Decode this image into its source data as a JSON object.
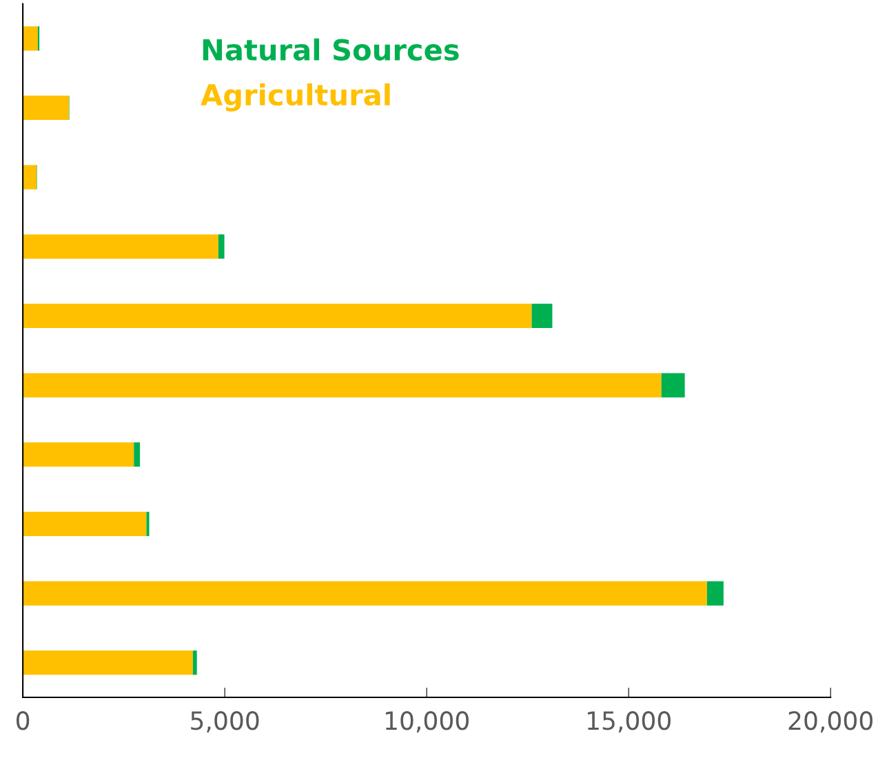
{
  "chart_data": {
    "type": "bar",
    "orientation": "horizontal",
    "stacked": true,
    "categories": [
      null,
      null,
      null,
      null,
      null,
      null,
      null,
      null,
      null,
      null
    ],
    "series": [
      {
        "name": "Agricultural",
        "color": "#ffc000",
        "values": [
          370,
          1140,
          340,
          4840,
          12600,
          15810,
          2750,
          3060,
          16940,
          4210
        ]
      },
      {
        "name": "Natural Sources",
        "color": "#00b050",
        "values": [
          40,
          10,
          10,
          150,
          510,
          580,
          150,
          70,
          410,
          100
        ]
      }
    ],
    "xlim": [
      0,
      20000
    ],
    "xticks": [
      {
        "value": 0,
        "label": "0"
      },
      {
        "value": 5000,
        "label": "5,000"
      },
      {
        "value": 10000,
        "label": "10,000"
      },
      {
        "value": 15000,
        "label": "15,000"
      },
      {
        "value": 20000,
        "label": "20,000"
      }
    ],
    "grid": false,
    "legend": "top"
  }
}
